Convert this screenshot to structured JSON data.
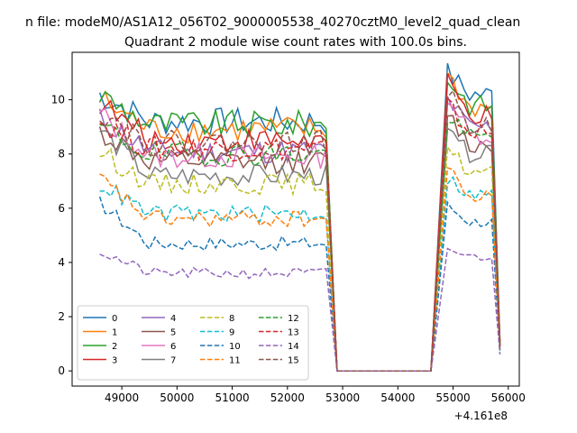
{
  "suptitle": "n file: modeM0/AS1A12_056T02_9000005538_40270cztM0_level2_quad_clean",
  "chart_data": {
    "type": "line",
    "title": "Quadrant 2 module wise count rates with 100.0s bins.",
    "xlabel": "",
    "ylabel": "",
    "x_offset_label": "+4.161e8",
    "xlim": [
      48100,
      56200
    ],
    "ylim": [
      -0.56,
      11.75
    ],
    "xticks": [
      49000,
      50000,
      51000,
      52000,
      53000,
      54000,
      55000,
      56000
    ],
    "yticks": [
      0,
      2,
      4,
      6,
      8,
      10
    ],
    "grid": false,
    "legend": {
      "position": "lower-left",
      "columns": 4
    },
    "gap": {
      "x_end": 52750,
      "x_drop": 52900,
      "x_rise": 54650,
      "x_start": 54900,
      "x_last": 55850
    },
    "series": [
      {
        "name": "0",
        "color": "#1f77b4",
        "dash": "solid",
        "level": 9.2,
        "start": 10.2,
        "end_level": 10.2,
        "end_start": 11.0,
        "final": 1.0
      },
      {
        "name": "1",
        "color": "#ff7f0e",
        "dash": "solid",
        "level": 8.9,
        "start": 10.0,
        "end_level": 9.7,
        "end_start": 10.9,
        "final": 1.0
      },
      {
        "name": "2",
        "color": "#2ca02c",
        "dash": "solid",
        "level": 9.1,
        "start": 10.2,
        "end_level": 9.8,
        "end_start": 10.8,
        "final": 1.0
      },
      {
        "name": "3",
        "color": "#d62728",
        "dash": "solid",
        "level": 8.5,
        "start": 9.9,
        "end_level": 9.4,
        "end_start": 10.6,
        "final": 0.9
      },
      {
        "name": "4",
        "color": "#9467bd",
        "dash": "solid",
        "level": 8.1,
        "start": 9.3,
        "end_level": 9.0,
        "end_start": 10.0,
        "final": 0.9
      },
      {
        "name": "5",
        "color": "#8c564b",
        "dash": "solid",
        "level": 7.7,
        "start": 8.8,
        "end_level": 8.3,
        "end_start": 9.5,
        "final": 0.9
      },
      {
        "name": "6",
        "color": "#e377c2",
        "dash": "solid",
        "level": 7.9,
        "start": 9.5,
        "end_level": 8.7,
        "end_start": 10.2,
        "final": 0.9
      },
      {
        "name": "7",
        "color": "#7f7f7f",
        "dash": "solid",
        "level": 7.2,
        "start": 8.9,
        "end_level": 8.0,
        "end_start": 8.8,
        "final": 0.9
      },
      {
        "name": "8",
        "color": "#bcbd22",
        "dash": "dashed",
        "level": 6.9,
        "start": 8.1,
        "end_level": 7.3,
        "end_start": 8.3,
        "final": 0.8
      },
      {
        "name": "9",
        "color": "#17becf",
        "dash": "dashed",
        "level": 5.8,
        "start": 6.9,
        "end_level": 6.5,
        "end_start": 7.1,
        "final": 0.7
      },
      {
        "name": "10",
        "color": "#1f77b4",
        "dash": "dashed",
        "level": 4.7,
        "start": 6.2,
        "end_level": 5.5,
        "end_start": 6.1,
        "final": 0.7
      },
      {
        "name": "11",
        "color": "#ff7f0e",
        "dash": "dashed",
        "level": 5.6,
        "start": 7.1,
        "end_level": 6.4,
        "end_start": 7.5,
        "final": 0.8
      },
      {
        "name": "12",
        "color": "#2ca02c",
        "dash": "dashed",
        "level": 8.0,
        "start": 9.0,
        "end_level": 8.6,
        "end_start": 9.4,
        "final": 0.9
      },
      {
        "name": "13",
        "color": "#d62728",
        "dash": "dashed",
        "level": 8.2,
        "start": 9.2,
        "end_level": 8.8,
        "end_start": 9.8,
        "final": 0.9
      },
      {
        "name": "14",
        "color": "#9467bd",
        "dash": "dashed",
        "level": 3.6,
        "start": 4.4,
        "end_level": 4.2,
        "end_start": 4.5,
        "final": 0.6
      },
      {
        "name": "15",
        "color": "#8c564b",
        "dash": "dashed",
        "level": 8.4,
        "start": 9.6,
        "end_level": 9.0,
        "end_start": 10.3,
        "final": 0.9
      }
    ]
  }
}
